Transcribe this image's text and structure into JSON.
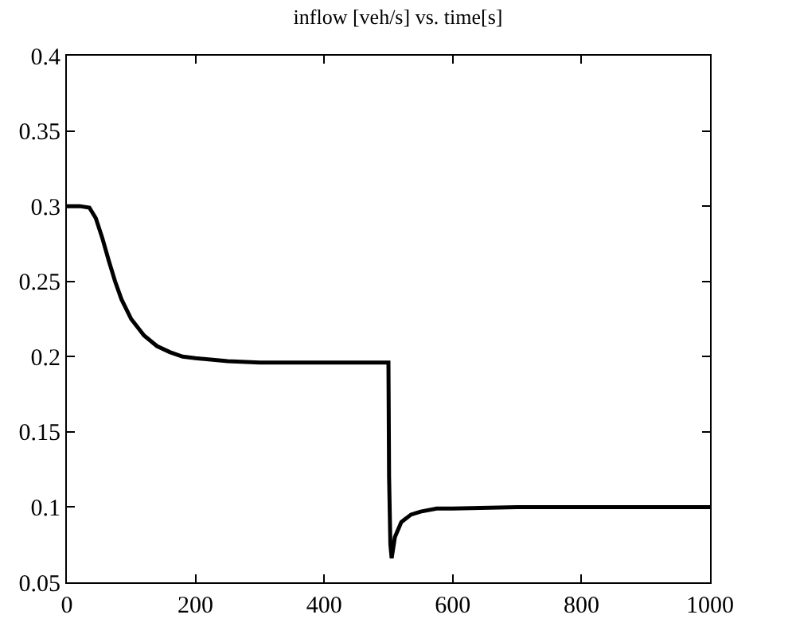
{
  "chart_data": {
    "type": "line",
    "title": "inflow [veh/s] vs. time[s]",
    "x": [
      0,
      20,
      35,
      45,
      55,
      65,
      75,
      85,
      100,
      120,
      140,
      160,
      180,
      200,
      250,
      300,
      400,
      500,
      501,
      503,
      505,
      510,
      520,
      535,
      550,
      575,
      600,
      700,
      800,
      1000
    ],
    "series": [
      {
        "color": "#000000",
        "values": [
          0.3,
          0.3,
          0.299,
          0.292,
          0.279,
          0.264,
          0.25,
          0.238,
          0.225,
          0.214,
          0.207,
          0.203,
          0.2,
          0.199,
          0.197,
          0.196,
          0.196,
          0.196,
          0.12,
          0.075,
          0.066,
          0.08,
          0.09,
          0.095,
          0.097,
          0.099,
          0.099,
          0.1,
          0.1,
          0.1
        ]
      }
    ],
    "xlim": [
      0,
      1000
    ],
    "xticks": [
      0,
      200,
      400,
      600,
      800,
      1000
    ],
    "ylim": [
      0.05,
      0.4
    ],
    "yticks": [
      0.05,
      0.1,
      0.15,
      0.2,
      0.25,
      0.3,
      0.35,
      0.4
    ],
    "marker": "none",
    "line_style": "solid"
  }
}
